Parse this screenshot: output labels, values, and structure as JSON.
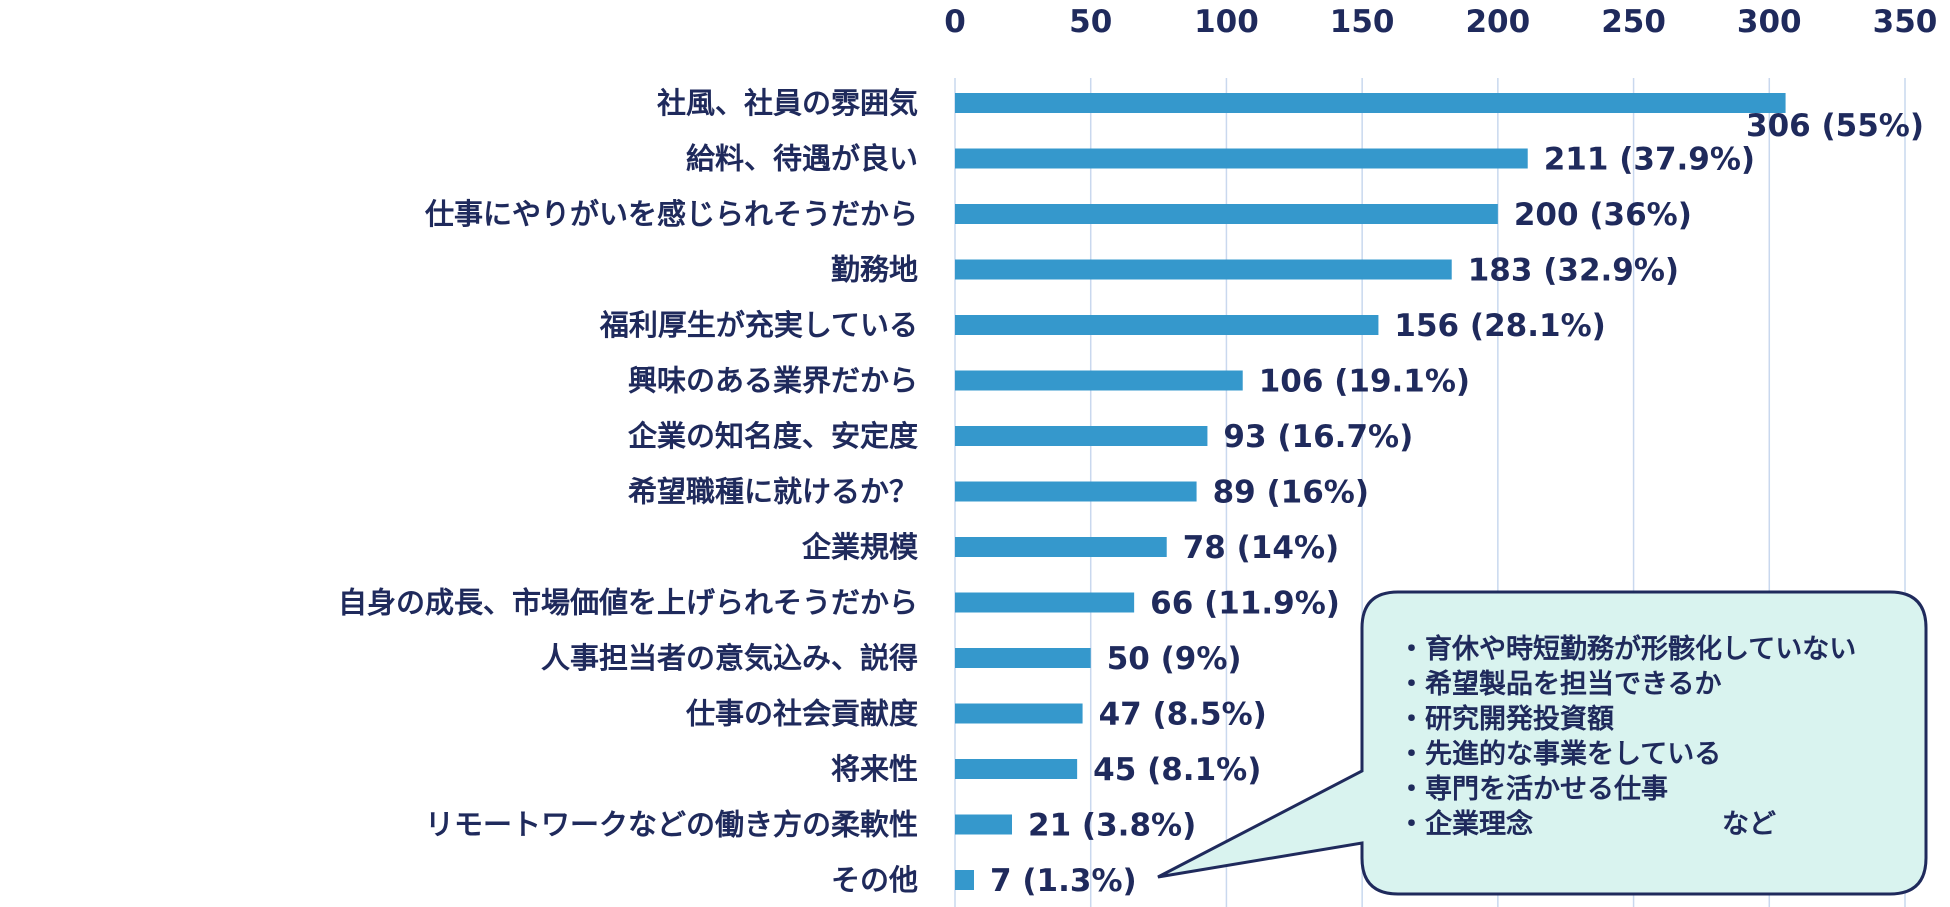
{
  "chart_data": {
    "type": "bar",
    "orientation": "horizontal",
    "categories": [
      "社風、社員の雰囲気",
      "給料、待遇が良い",
      "仕事にやりがいを感じられそうだから",
      "勤務地",
      "福利厚生が充実している",
      "興味のある業界だから",
      "企業の知名度、安定度",
      "希望職種に就けるか？",
      "企業規模",
      "自身の成長、市場価値を上げられそうだから",
      "人事担当者の意気込み、説得",
      "仕事の社会貢献度",
      "将来性",
      "リモートワークなどの働き方の柔軟性",
      "その他"
    ],
    "values": [
      306,
      211,
      200,
      183,
      156,
      106,
      93,
      89,
      78,
      66,
      50,
      47,
      45,
      21,
      7
    ],
    "data_labels": [
      "306 (55%)",
      "211 (37.9%)",
      "200 (36%)",
      "183 (32.9%)",
      "156 (28.1%)",
      "106 (19.1%)",
      "93 (16.7%)",
      "89 (16%)",
      "78 (14%)",
      "66 (11.9%)",
      "50 (9%)",
      "47 (8.5%)",
      "45 (8.1%)",
      "21 (3.8%)",
      "7 (1.3%)"
    ],
    "xlim": [
      0,
      350
    ],
    "ticks": [
      "0",
      "50",
      "100",
      "150",
      "200",
      "250",
      "300",
      "350"
    ],
    "axis_position": "top",
    "grid": true,
    "bar_color": "#3598cc",
    "grid_color": "#c9d8ee"
  },
  "callout": {
    "lines": [
      "・育休や時短勤務が形骸化していない",
      "・希望製品を担当できるか",
      "・研究開発投資額",
      "・先進的な事業をしている",
      "・専門を活かせる仕事",
      "・企業理念　　　　　　　など"
    ],
    "fill": "#d9f3ef",
    "border": "#1f2a5c"
  }
}
